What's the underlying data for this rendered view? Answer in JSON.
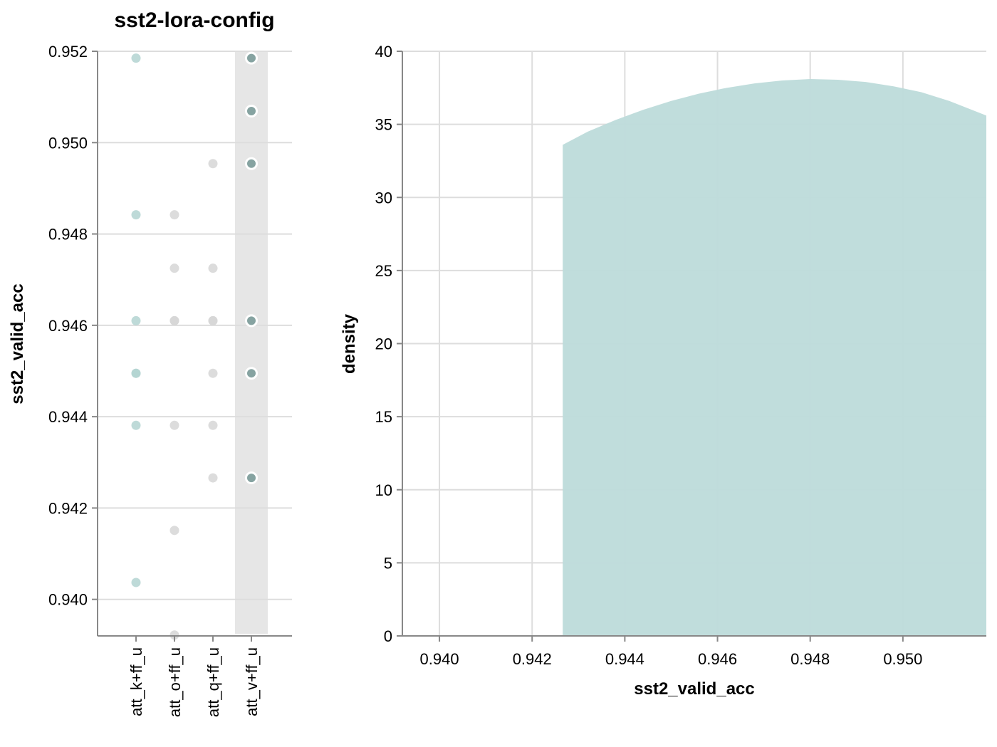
{
  "chart_data": [
    {
      "type": "scatter",
      "title": "sst2-lora-config",
      "xlabel": "",
      "ylabel": "sst2_valid_acc",
      "categories": [
        "att_k+ff_u",
        "att_o+ff_u",
        "att_q+ff_u",
        "att_v+ff_u"
      ],
      "highlighted_category": "att_v+ff_u",
      "y_ticks": [
        "0.940",
        "0.942",
        "0.944",
        "0.946",
        "0.948",
        "0.950",
        "0.952"
      ],
      "ylim": [
        0.9392,
        0.952
      ],
      "grid": true,
      "colors": {
        "att_k+ff_u": "#b3d3d1",
        "att_o+ff_u": "#d6d6d6",
        "att_q+ff_u": "#d6d6d6",
        "att_v+ff_u": "#86a3a1",
        "highlight_band": "#e6e6e6"
      },
      "points": [
        {
          "category": "att_k+ff_u",
          "y": 0.95185
        },
        {
          "category": "att_k+ff_u",
          "y": 0.94842
        },
        {
          "category": "att_k+ff_u",
          "y": 0.9461
        },
        {
          "category": "att_k+ff_u",
          "y": 0.94495
        },
        {
          "category": "att_k+ff_u",
          "y": 0.94495
        },
        {
          "category": "att_k+ff_u",
          "y": 0.94381
        },
        {
          "category": "att_k+ff_u",
          "y": 0.94037
        },
        {
          "category": "att_o+ff_u",
          "y": 0.94842
        },
        {
          "category": "att_o+ff_u",
          "y": 0.94725
        },
        {
          "category": "att_o+ff_u",
          "y": 0.9461
        },
        {
          "category": "att_o+ff_u",
          "y": 0.9461
        },
        {
          "category": "att_o+ff_u",
          "y": 0.94381
        },
        {
          "category": "att_o+ff_u",
          "y": 0.94151
        },
        {
          "category": "att_o+ff_u",
          "y": 0.93922
        },
        {
          "category": "att_q+ff_u",
          "y": 0.94954
        },
        {
          "category": "att_q+ff_u",
          "y": 0.94725
        },
        {
          "category": "att_q+ff_u",
          "y": 0.9461
        },
        {
          "category": "att_q+ff_u",
          "y": 0.9461
        },
        {
          "category": "att_q+ff_u",
          "y": 0.94495
        },
        {
          "category": "att_q+ff_u",
          "y": 0.94381
        },
        {
          "category": "att_q+ff_u",
          "y": 0.94266
        },
        {
          "category": "att_v+ff_u",
          "y": 0.95185
        },
        {
          "category": "att_v+ff_u",
          "y": 0.95069
        },
        {
          "category": "att_v+ff_u",
          "y": 0.94954
        },
        {
          "category": "att_v+ff_u",
          "y": 0.9461
        },
        {
          "category": "att_v+ff_u",
          "y": 0.94495
        },
        {
          "category": "att_v+ff_u",
          "y": 0.94266
        }
      ]
    },
    {
      "type": "area",
      "title": "",
      "xlabel": "sst2_valid_acc",
      "ylabel": "density",
      "xlim": [
        0.9392,
        0.9518
      ],
      "ylim": [
        0,
        40
      ],
      "x_ticks": [
        "0.940",
        "0.942",
        "0.944",
        "0.946",
        "0.948",
        "0.950"
      ],
      "y_ticks": [
        "0",
        "5",
        "10",
        "15",
        "20",
        "25",
        "30",
        "35",
        "40"
      ],
      "grid": true,
      "color": "#bddbda",
      "x": [
        0.94266,
        0.9432,
        0.9438,
        0.9444,
        0.945,
        0.9456,
        0.9462,
        0.9468,
        0.9474,
        0.948,
        0.9486,
        0.9492,
        0.9498,
        0.9504,
        0.951,
        0.9518
      ],
      "values": [
        33.6,
        34.5,
        35.3,
        36.0,
        36.6,
        37.1,
        37.5,
        37.8,
        38.0,
        38.1,
        38.05,
        37.9,
        37.6,
        37.2,
        36.6,
        35.6
      ]
    }
  ]
}
